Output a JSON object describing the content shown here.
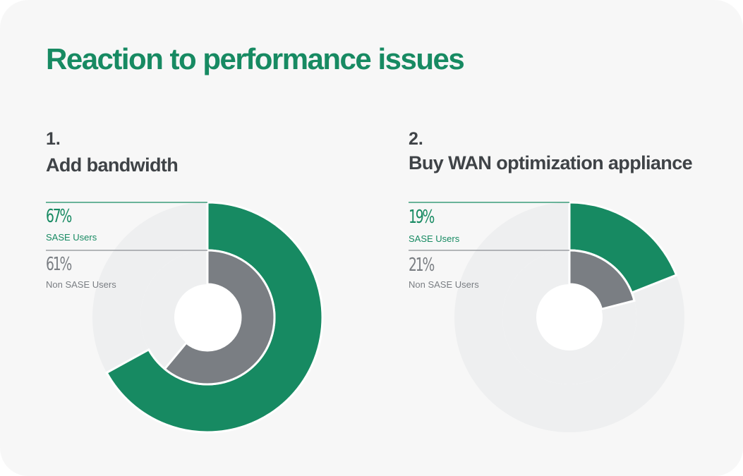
{
  "title": "Reaction to performance issues",
  "colors": {
    "title": "#178a62",
    "sase": "#178a62",
    "non_sase": "#7a7e83",
    "track": "#eeeff0",
    "rule_sase": "#178a62",
    "rule_non_sase": "#8a8e92",
    "text_dark": "#3f4347"
  },
  "chart_data": [
    {
      "type": "donut",
      "number": "1.",
      "title": "Add bandwidth",
      "series": [
        {
          "name": "SASE Users",
          "label": "67%",
          "value": 67
        },
        {
          "name": "Non SASE Users",
          "label": "61%",
          "value": 61
        }
      ],
      "max": 100
    },
    {
      "type": "donut",
      "number": "2.",
      "title": "Buy WAN optimization appliance",
      "series": [
        {
          "name": "SASE Users",
          "label": "19%",
          "value": 19
        },
        {
          "name": "Non SASE Users",
          "label": "21%",
          "value": 21
        }
      ],
      "max": 100
    }
  ]
}
